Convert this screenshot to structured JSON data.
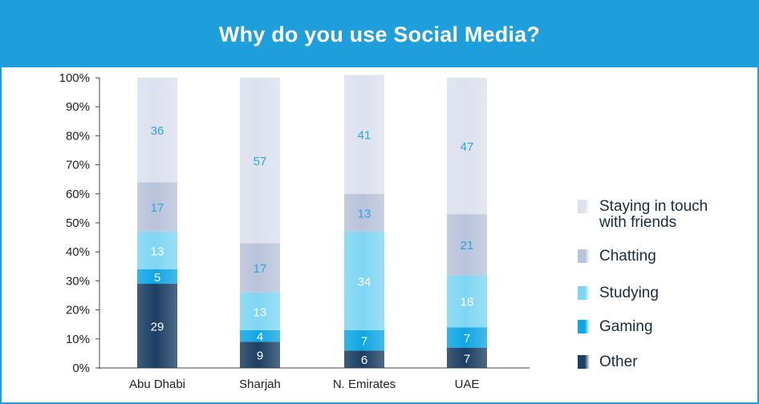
{
  "title": "Why do you use Social Media?",
  "chart_data": {
    "type": "bar",
    "stacked": true,
    "categories": [
      "Abu Dhabi",
      "Sharjah",
      "N. Emirates",
      "UAE"
    ],
    "yticks": [
      "0%",
      "10%",
      "20%",
      "30%",
      "40%",
      "50%",
      "60%",
      "70%",
      "80%",
      "90%",
      "100%"
    ],
    "ylim": [
      0,
      100
    ],
    "series": [
      {
        "name": "Other",
        "color": "#1c3f63",
        "values": [
          29,
          9,
          6,
          7
        ]
      },
      {
        "name": "Gaming",
        "color": "#10a6e4",
        "values": [
          5,
          4,
          7,
          7
        ]
      },
      {
        "name": "Studying",
        "color": "#7fd6f4",
        "values": [
          13,
          13,
          34,
          18
        ]
      },
      {
        "name": "Chatting",
        "color": "#b9c3da",
        "values": [
          17,
          17,
          13,
          21
        ]
      },
      {
        "name": "Staying in touch with friends",
        "color": "#dde1ee",
        "values": [
          36,
          57,
          41,
          47
        ]
      }
    ],
    "legend": [
      {
        "line1": "Staying in touch",
        "line2": "with friends",
        "color": "#dde1ee"
      },
      {
        "line1": "Chatting",
        "line2": "",
        "color": "#b9c3da"
      },
      {
        "line1": "Studying",
        "line2": "",
        "color": "#7fd6f4"
      },
      {
        "line1": "Gaming",
        "line2": "",
        "color": "#10a6e4"
      },
      {
        "line1": "Other",
        "line2": "",
        "color": "#1c3f63"
      }
    ],
    "legend_position": "right",
    "grid": false
  }
}
